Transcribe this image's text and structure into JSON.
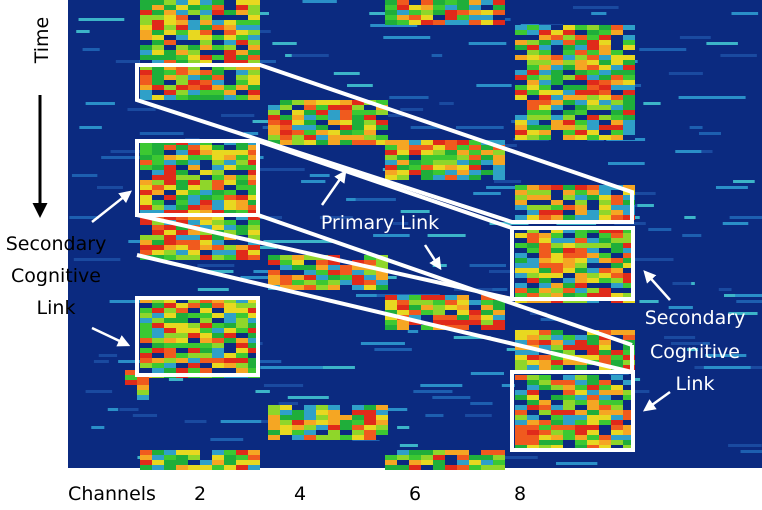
{
  "time_label": "Time",
  "left_annotation": {
    "lines": [
      "Secondary",
      "Cognitive",
      "Link"
    ]
  },
  "primary_annotation": "Primary Link",
  "right_annotation": {
    "lines": [
      "Secondary",
      "Cognitive",
      "Link"
    ]
  },
  "x_axis": {
    "label": "Channels",
    "ticks": [
      "2",
      "4",
      "6",
      "8"
    ]
  }
}
